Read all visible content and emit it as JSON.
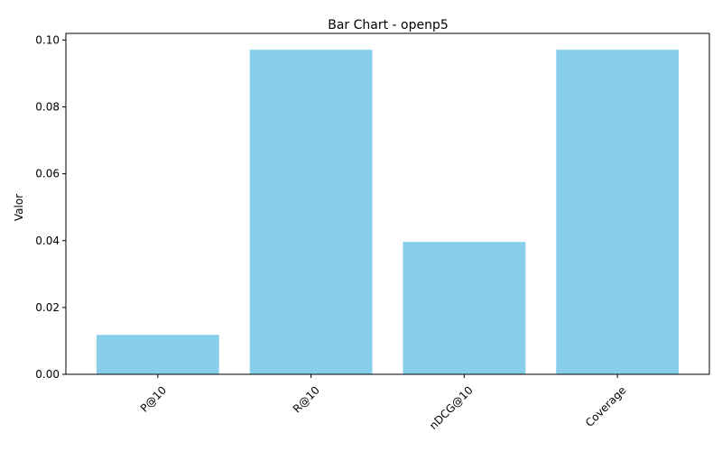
{
  "chart_data": {
    "type": "bar",
    "title": "Bar Chart - openp5",
    "xlabel": "",
    "ylabel": "Valor",
    "categories": [
      "P@10",
      "R@10",
      "nDCG@10",
      "Coverage"
    ],
    "values": [
      0.0118,
      0.0971,
      0.0396,
      0.0971
    ],
    "ylim": [
      0,
      0.102
    ],
    "yticks": [
      0.0,
      0.02,
      0.04,
      0.06,
      0.08,
      0.1
    ],
    "ytick_labels": [
      "0.00",
      "0.02",
      "0.04",
      "0.06",
      "0.08",
      "0.10"
    ],
    "bar_color": "#87CEEB",
    "grid": false,
    "legend": "none"
  }
}
